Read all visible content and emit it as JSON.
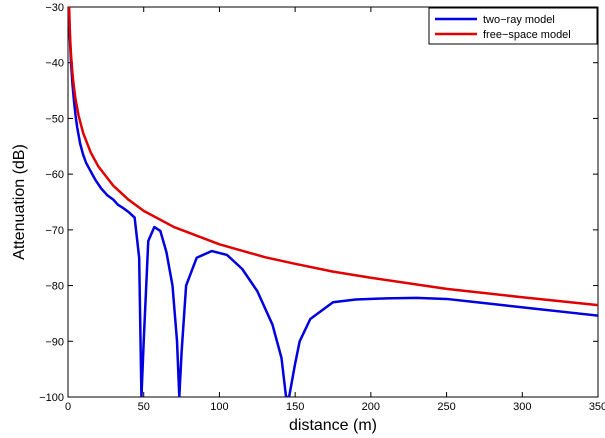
{
  "chart_data": {
    "type": "line",
    "title": "",
    "xlabel": "distance (m)",
    "ylabel": "Attenuation (dB)",
    "xlim": [
      0,
      350
    ],
    "ylim": [
      -100,
      -30
    ],
    "xticks": [
      0,
      50,
      100,
      150,
      200,
      250,
      300,
      350
    ],
    "yticks": [
      -100,
      -90,
      -80,
      -70,
      -60,
      -50,
      -40,
      -30
    ],
    "xtick_labels": [
      "0",
      "50",
      "100",
      "150",
      "200",
      "250",
      "300",
      "350"
    ],
    "ytick_labels": [
      "−100",
      "−90",
      "−80",
      "−70",
      "−60",
      "−50",
      "−40",
      "−30"
    ],
    "grid": false,
    "legend_position": "top-right",
    "series": [
      {
        "name": "two−ray model",
        "color": "#0000e0",
        "x": [
          0.8,
          1,
          2,
          3,
          4,
          5,
          6,
          7,
          8,
          9,
          10,
          12,
          14,
          16,
          18,
          20,
          22,
          24,
          26,
          28,
          30,
          33,
          36,
          40,
          44,
          47,
          48.5,
          50,
          53,
          57,
          61,
          65,
          69,
          72,
          73.5,
          75,
          78,
          85,
          95,
          105,
          115,
          125,
          135,
          141,
          144,
          146,
          150,
          153,
          160,
          175,
          190,
          210,
          230,
          250,
          270,
          290,
          310,
          330,
          350
        ],
        "values": [
          -30.5,
          -34,
          -40,
          -44,
          -47,
          -49.5,
          -51.5,
          -53,
          -54.5,
          -55.5,
          -56.5,
          -58,
          -59,
          -60,
          -61,
          -61.8,
          -62.6,
          -63.2,
          -63.8,
          -64.2,
          -64.6,
          -65.5,
          -66,
          -66.8,
          -67.8,
          -75,
          -100,
          -90,
          -72,
          -69.5,
          -70.2,
          -74,
          -80,
          -90,
          -100,
          -92,
          -80,
          -75,
          -73.8,
          -74.5,
          -77,
          -81,
          -87,
          -93,
          -100,
          -100,
          -94,
          -90,
          -86,
          -83,
          -82.5,
          -82.3,
          -82.2,
          -82.4,
          -83,
          -83.6,
          -84.2,
          -84.8,
          -85.4
        ]
      },
      {
        "name": "free−space model",
        "color": "#e00000",
        "x": [
          0.75,
          1,
          1.5,
          2,
          3,
          4,
          5,
          7,
          10,
          15,
          20,
          30,
          40,
          50,
          70,
          100,
          130,
          150,
          175,
          200,
          250,
          300,
          350
        ],
        "values": [
          -30,
          -32.6,
          -36.1,
          -38.6,
          -42.1,
          -44.6,
          -46.6,
          -49.5,
          -52.6,
          -56.1,
          -58.6,
          -62.1,
          -64.6,
          -66.6,
          -69.5,
          -72.6,
          -74.9,
          -76.1,
          -77.5,
          -78.6,
          -80.6,
          -82.1,
          -83.5
        ]
      }
    ]
  }
}
